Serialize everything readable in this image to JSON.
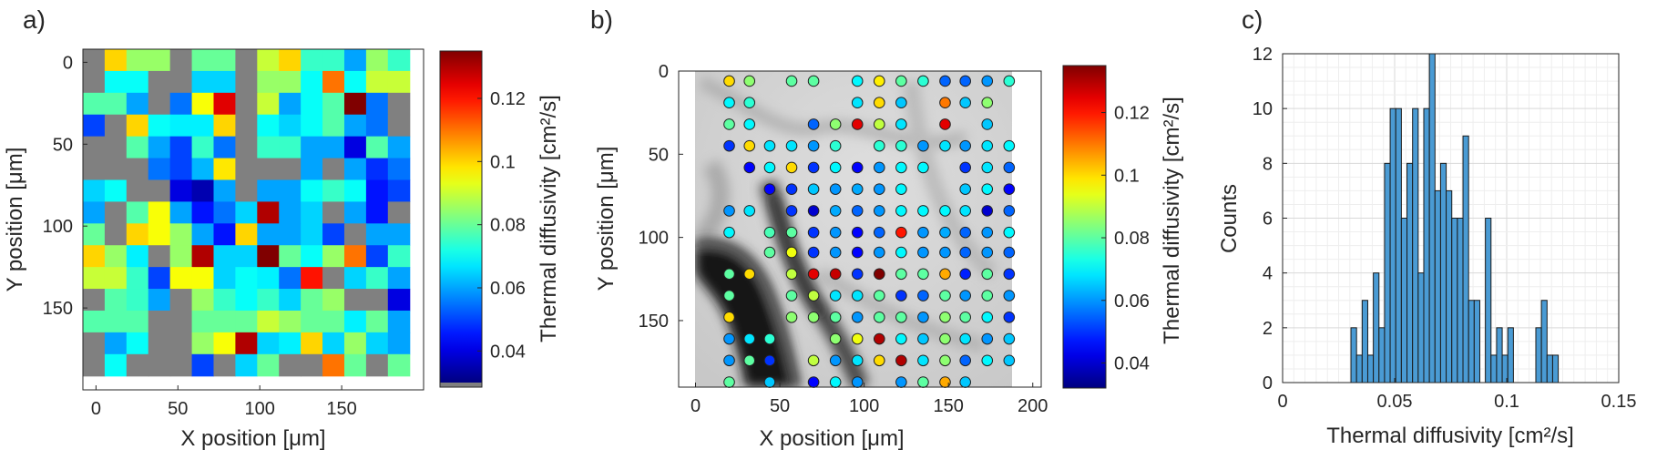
{
  "chart_data": [
    {
      "panel_label": "a)",
      "type": "heatmap",
      "xlabel": "X position [μm]",
      "ylabel": "Y position [μm]",
      "x_ticks": [
        "0",
        "50",
        "100",
        "150"
      ],
      "y_ticks": [
        "0",
        "50",
        "100",
        "150"
      ],
      "xlim": [
        -8,
        200
      ],
      "ylim": [
        -8,
        200
      ],
      "colorbar": {
        "label": "Thermal diffusivity [cm²/s]",
        "ticks": [
          "0.04",
          "0.06",
          "0.08",
          "0.1",
          "0.12"
        ],
        "range": [
          0.03,
          0.135
        ],
        "colormap": "jet",
        "missing_color": "#808080"
      },
      "grid": {
        "x0": -8,
        "y0": -8,
        "cell": 13.3,
        "values": [
          [
            null,
            0.1,
            0.085,
            0.085,
            null,
            0.08,
            0.08,
            null,
            0.09,
            0.1,
            0.075,
            0.075,
            0.06,
            0.085,
            0.075
          ],
          [
            null,
            0.07,
            0.07,
            null,
            null,
            0.065,
            0.065,
            null,
            0.085,
            0.085,
            0.07,
            0.11,
            0.07,
            0.09,
            0.09
          ],
          [
            0.078,
            0.078,
            0.06,
            null,
            0.055,
            0.095,
            0.125,
            null,
            0.09,
            0.06,
            0.07,
            0.078,
            0.135,
            0.055,
            null
          ],
          [
            0.05,
            null,
            0.1,
            0.07,
            0.068,
            0.068,
            0.1,
            null,
            0.07,
            0.065,
            0.07,
            0.078,
            0.06,
            0.055,
            null
          ],
          [
            null,
            null,
            0.078,
            0.06,
            0.05,
            0.075,
            0.055,
            null,
            0.075,
            0.075,
            0.06,
            0.06,
            0.04,
            0.078,
            0.06
          ],
          [
            null,
            null,
            null,
            0.055,
            0.05,
            0.062,
            0.098,
            null,
            null,
            null,
            0.06,
            null,
            0.06,
            0.048,
            0.055
          ],
          [
            0.065,
            0.07,
            null,
            null,
            0.04,
            0.035,
            0.06,
            null,
            0.06,
            0.06,
            0.07,
            0.075,
            0.07,
            0.045,
            0.05
          ],
          [
            0.06,
            null,
            0.078,
            0.095,
            0.06,
            0.045,
            0.055,
            0.065,
            0.13,
            0.06,
            0.065,
            null,
            0.06,
            0.045,
            null
          ],
          [
            0.08,
            null,
            0.1,
            0.095,
            0.085,
            0.06,
            0.045,
            0.1,
            0.06,
            0.06,
            0.065,
            0.05,
            null,
            0.06,
            0.06
          ],
          [
            0.1,
            0.085,
            0.068,
            null,
            0.085,
            0.13,
            0.065,
            0.065,
            0.135,
            0.08,
            0.07,
            0.085,
            0.11,
            0.05,
            0.075
          ],
          [
            0.09,
            0.09,
            0.075,
            0.05,
            0.095,
            0.095,
            0.065,
            0.07,
            0.068,
            0.055,
            0.12,
            null,
            0.065,
            0.075,
            0.06
          ],
          [
            null,
            0.078,
            0.075,
            0.06,
            null,
            0.085,
            0.075,
            0.07,
            0.075,
            0.065,
            0.08,
            0.085,
            null,
            null,
            0.04
          ],
          [
            0.078,
            0.078,
            0.078,
            null,
            null,
            0.08,
            0.08,
            0.08,
            0.09,
            0.085,
            0.08,
            0.08,
            0.068,
            0.08,
            0.06
          ],
          [
            null,
            0.06,
            0.07,
            null,
            null,
            0.085,
            0.095,
            0.13,
            0.065,
            0.068,
            0.1,
            0.065,
            0.085,
            0.065,
            0.06
          ],
          [
            null,
            0.07,
            null,
            null,
            null,
            0.05,
            null,
            0.065,
            0.08,
            null,
            null,
            0.11,
            0.08,
            null,
            0.08
          ]
        ]
      }
    },
    {
      "panel_label": "b)",
      "type": "scatter",
      "xlabel": "X position [μm]",
      "ylabel": "Y position [μm]",
      "x_ticks": [
        "0",
        "50",
        "100",
        "150",
        "200"
      ],
      "y_ticks": [
        "0",
        "50",
        "100",
        "150"
      ],
      "xlim": [
        -10,
        205
      ],
      "ylim": [
        0,
        190
      ],
      "background": "grayscale micrograph",
      "colorbar": {
        "label": "Thermal diffusivity [cm²/s]",
        "ticks": [
          "0.04",
          "0.06",
          "0.08",
          "0.1",
          "0.12"
        ],
        "range": [
          0.032,
          0.135
        ],
        "colormap": "jet"
      },
      "points": {
        "x_values": [
          20,
          32,
          44,
          57,
          70,
          83,
          96,
          109,
          122,
          135,
          148,
          160,
          173,
          186
        ],
        "rows": [
          {
            "y": 6,
            "v": [
              0.1,
              0.085,
              null,
              0.08,
              0.08,
              null,
              0.07,
              0.098,
              0.08,
              0.075,
              0.055,
              0.055,
              0.06,
              0.075
            ]
          },
          {
            "y": 19,
            "v": [
              0.07,
              0.075,
              null,
              null,
              null,
              null,
              0.068,
              0.1,
              0.065,
              null,
              0.11,
              0.065,
              0.085,
              null
            ]
          },
          {
            "y": 32,
            "v": [
              0.08,
              0.07,
              null,
              null,
              0.055,
              0.085,
              0.125,
              0.09,
              0.068,
              null,
              0.125,
              null,
              0.065,
              null
            ]
          },
          {
            "y": 45,
            "v": [
              0.05,
              0.1,
              0.068,
              0.068,
              0.06,
              0.075,
              null,
              0.075,
              0.075,
              0.06,
              0.068,
              0.06,
              0.068,
              0.07
            ]
          },
          {
            "y": 58,
            "v": [
              null,
              0.045,
              0.07,
              0.1,
              0.05,
              0.07,
              0.045,
              0.06,
              0.07,
              0.07,
              null,
              0.05,
              0.068,
              0.055
            ]
          },
          {
            "y": 71,
            "v": [
              null,
              null,
              0.045,
              0.05,
              0.065,
              0.06,
              0.062,
              0.06,
              0.07,
              null,
              null,
              0.065,
              0.07,
              0.045
            ]
          },
          {
            "y": 84,
            "v": [
              0.06,
              0.068,
              null,
              0.05,
              0.04,
              0.062,
              0.055,
              0.06,
              0.07,
              0.07,
              0.07,
              0.068,
              0.04,
              0.055
            ]
          },
          {
            "y": 97,
            "v": [
              0.07,
              null,
              0.078,
              0.08,
              0.05,
              0.06,
              0.045,
              0.055,
              0.12,
              0.06,
              0.062,
              0.055,
              0.06,
              0.07
            ]
          },
          {
            "y": 109,
            "v": [
              null,
              null,
              0.08,
              0.095,
              0.05,
              0.06,
              0.045,
              0.06,
              0.07,
              0.06,
              0.06,
              0.055,
              0.06,
              0.055
            ]
          },
          {
            "y": 122,
            "v": [
              0.08,
              0.1,
              null,
              0.09,
              0.125,
              0.128,
              0.05,
              0.135,
              0.08,
              0.08,
              0.105,
              0.048,
              0.08,
              0.05
            ]
          },
          {
            "y": 135,
            "v": [
              0.08,
              null,
              null,
              0.08,
              0.09,
              0.068,
              0.068,
              0.08,
              0.05,
              0.055,
              0.08,
              0.06,
              0.08,
              0.06
            ]
          },
          {
            "y": 148,
            "v": [
              0.1,
              null,
              null,
              0.085,
              0.085,
              0.08,
              0.06,
              0.08,
              0.08,
              0.06,
              0.085,
              0.08,
              0.07,
              0.05
            ]
          },
          {
            "y": 161,
            "v": [
              0.06,
              0.068,
              0.075,
              null,
              null,
              0.085,
              0.095,
              0.13,
              0.07,
              0.065,
              0.085,
              0.068,
              0.06,
              0.065
            ]
          },
          {
            "y": 174,
            "v": [
              0.06,
              0.08,
              0.05,
              null,
              0.09,
              0.06,
              0.068,
              0.1,
              0.13,
              0.068,
              0.085,
              0.055,
              0.07,
              0.065
            ]
          },
          {
            "y": 187,
            "v": [
              0.08,
              null,
              0.065,
              null,
              0.045,
              0.07,
              0.06,
              null,
              0.06,
              0.08,
              0.105,
              0.065,
              null,
              null
            ]
          }
        ]
      }
    },
    {
      "panel_label": "c)",
      "type": "bar",
      "subtype": "histogram",
      "xlabel": "Thermal diffusivity [cm²/s]",
      "ylabel": "Counts",
      "x_ticks": [
        "0",
        "0.05",
        "0.1",
        "0.15"
      ],
      "y_ticks": [
        "0",
        "2",
        "4",
        "6",
        "8",
        "10",
        "12"
      ],
      "xlim": [
        0,
        0.15
      ],
      "ylim": [
        0,
        12
      ],
      "grid": true,
      "bin_start": 0.0305,
      "bin_width": 0.0025,
      "counts": [
        2,
        1,
        3,
        1,
        4,
        2,
        8,
        10,
        10,
        6,
        8,
        10,
        4,
        10,
        12,
        7,
        8,
        7,
        6,
        6,
        9,
        3,
        3,
        0,
        6,
        1,
        2,
        1,
        2,
        0,
        0,
        0,
        0,
        2,
        3,
        1,
        1
      ]
    }
  ]
}
